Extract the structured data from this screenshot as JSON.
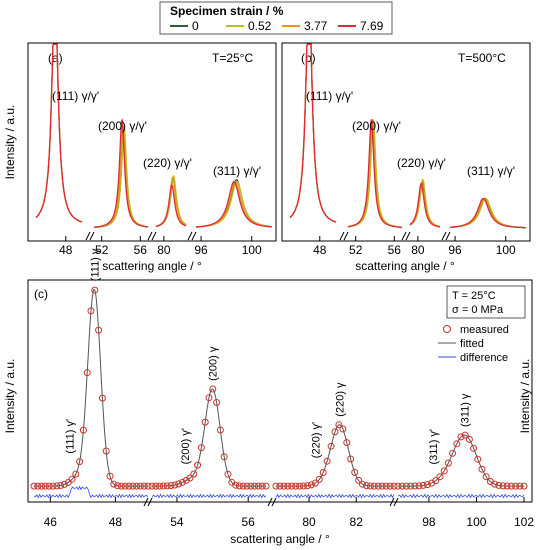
{
  "legend": {
    "title": "Specimen strain / %",
    "entries": [
      {
        "label": "0",
        "color": "#2f5f3a"
      },
      {
        "label": "0.52",
        "color": "#b8c21e"
      },
      {
        "label": "3.77",
        "color": "#e8951e"
      },
      {
        "label": "7.69",
        "color": "#e0283a"
      }
    ]
  },
  "panel_a": {
    "label": "(a)",
    "temp": "T=25°C",
    "ylabel": "Intensity / a.u.",
    "xlabel": "scattering angle / °"
  },
  "panel_b": {
    "label": "(b)",
    "temp": "T=500°C",
    "ylabel": "Intensity / a.u.",
    "xlabel": "scattering angle / °"
  },
  "panel_c": {
    "label": "(c)",
    "temp": "T = 25°C",
    "stress": "σ = 0 MPa",
    "ylabel_left": "Intensity / a.u.",
    "ylabel_right": "Intensity / a.u.",
    "xlabel": "scattering angle / °",
    "legend": {
      "measured": "measured",
      "fitted": "fitted",
      "difference": "difference"
    }
  },
  "chart_data": [
    {
      "type": "line",
      "title": "(a) T=25°C",
      "xlabel": "scattering angle / °",
      "ylabel": "Intensity / a.u.",
      "segments": [
        {
          "ticks": [
            "48"
          ],
          "peak": {
            "label": "(111) γ/γ'",
            "x": 47.2
          }
        },
        {
          "ticks": [
            "52",
            "56"
          ],
          "peak": {
            "label": "(200) γ/γ'",
            "x": 54.3
          }
        },
        {
          "ticks": [
            "80"
          ],
          "peak": {
            "label": "(220) γ/γ'",
            "x": 81.2
          }
        },
        {
          "ticks": [
            "96",
            "100"
          ],
          "peak": {
            "label": "(311) γ/γ'",
            "x": 98.8
          }
        }
      ],
      "series": [
        {
          "name": "0",
          "peak_heights": [
            1.0,
            0.52,
            0.27,
            0.26
          ],
          "shift": 0.0
        },
        {
          "name": "0.52",
          "peak_heights": [
            1.0,
            0.54,
            0.28,
            0.25
          ],
          "shift": 0.05
        },
        {
          "name": "3.77",
          "peak_heights": [
            1.0,
            0.55,
            0.27,
            0.25
          ],
          "shift": -0.2
        },
        {
          "name": "7.69",
          "peak_heights": [
            1.0,
            0.58,
            0.23,
            0.25
          ],
          "shift": -0.4
        }
      ]
    },
    {
      "type": "line",
      "title": "(b) T=500°C",
      "xlabel": "scattering angle / °",
      "ylabel": "Intensity / a.u.",
      "segments": [
        {
          "ticks": [
            "48"
          ],
          "peak": {
            "label": "(111) γ/γ'",
            "x": 47.2
          }
        },
        {
          "ticks": [
            "52",
            "56"
          ],
          "peak": {
            "label": "(200) γ/γ'",
            "x": 53.8
          }
        },
        {
          "ticks": [
            "80"
          ],
          "peak": {
            "label": "(220) γ/γ'",
            "x": 80.6
          }
        },
        {
          "ticks": [
            "96",
            "100"
          ],
          "peak": {
            "label": "(311) γ/γ'",
            "x": 98.4
          }
        }
      ],
      "series": [
        {
          "name": "0",
          "peak_heights": [
            1.0,
            0.58,
            0.25,
            0.16
          ],
          "shift": 0.0
        },
        {
          "name": "0.52",
          "peak_heights": [
            1.0,
            0.58,
            0.26,
            0.16
          ],
          "shift": 0.05
        },
        {
          "name": "3.77",
          "peak_heights": [
            1.0,
            0.58,
            0.24,
            0.16
          ],
          "shift": -0.2
        },
        {
          "name": "7.69",
          "peak_heights": [
            1.0,
            0.58,
            0.24,
            0.16
          ],
          "shift": -0.35
        }
      ]
    },
    {
      "type": "scatter",
      "title": "(c) T = 25°C, σ = 0 MPa",
      "xlabel": "scattering angle / °",
      "ylabel": "Intensity / a.u.",
      "segments": [
        {
          "xlim": [
            45.5,
            49.0
          ],
          "ticks": [
            46,
            48
          ],
          "peaks": [
            {
              "label": "(111) γ'",
              "x": 46.9,
              "height": 0.05,
              "width": 0.35
            },
            {
              "label": "(111) γ",
              "x": 47.35,
              "height": 1.0,
              "width": 0.28
            }
          ]
        },
        {
          "xlim": [
            53.3,
            56.5
          ],
          "ticks": [
            54,
            56
          ],
          "peaks": [
            {
              "label": "(200) γ'",
              "x": 54.5,
              "height": 0.04,
              "width": 0.4
            },
            {
              "label": "(200) γ",
              "x": 55.0,
              "height": 0.49,
              "width": 0.3
            }
          ]
        },
        {
          "xlim": [
            78.6,
            83.6
          ],
          "ticks": [
            80,
            82
          ],
          "peaks": [
            {
              "label": "(220) γ'",
              "x": 80.7,
              "height": 0.02,
              "width": 0.5
            },
            {
              "label": "(220) γ",
              "x": 81.3,
              "height": 0.31,
              "width": 0.52
            }
          ]
        },
        {
          "xlim": [
            96.7,
            102.0
          ],
          "ticks": [
            98,
            100,
            102
          ],
          "peaks": [
            {
              "label": "(311) γ'",
              "x": 98.6,
              "height": 0.02,
              "width": 0.6
            },
            {
              "label": "(311) γ",
              "x": 99.5,
              "height": 0.26,
              "width": 0.7
            }
          ]
        }
      ],
      "series": [
        {
          "name": "measured",
          "color": "#c8352c"
        },
        {
          "name": "fitted",
          "color": "#555555"
        },
        {
          "name": "difference",
          "color": "#2f4fe0"
        }
      ]
    }
  ]
}
